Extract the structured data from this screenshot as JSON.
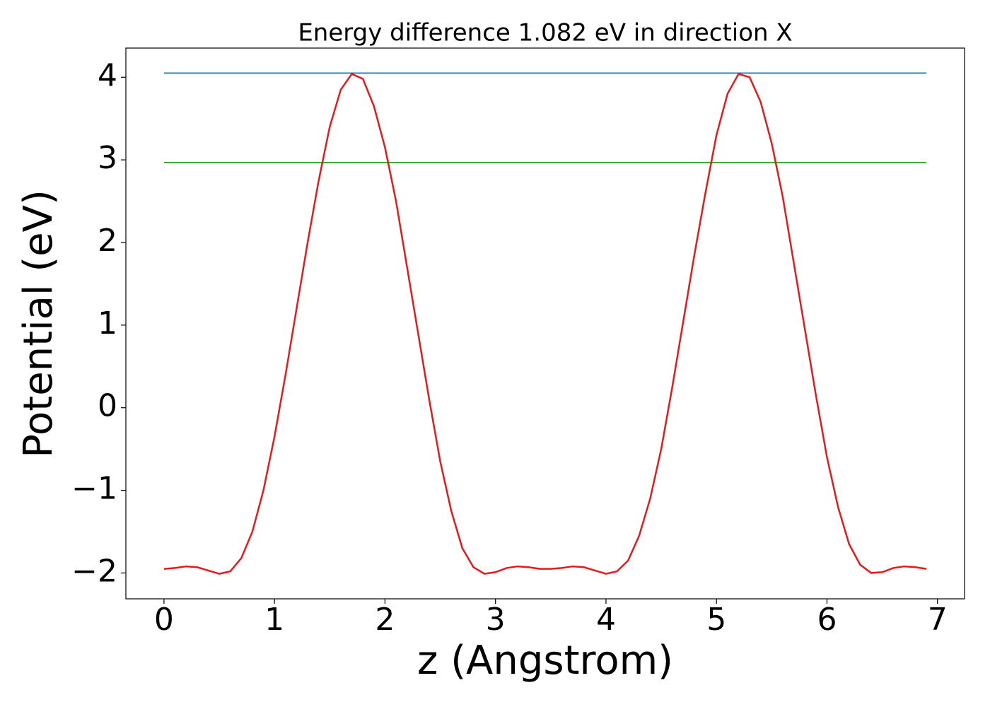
{
  "chart_data": {
    "type": "line",
    "title": "Energy difference 1.082 eV in direction X",
    "x_label": "z (Angstrom)",
    "y_label": "Potential (eV)",
    "xlim": [
      -0.345,
      7.245
    ],
    "ylim": [
      -2.313,
      4.353
    ],
    "xticks": [
      0,
      1,
      2,
      3,
      4,
      5,
      6,
      7
    ],
    "yticks": [
      {
        "value": -2,
        "label": "−2"
      },
      {
        "value": -1,
        "label": "−1"
      },
      0,
      1,
      2,
      3,
      4
    ],
    "series": [
      {
        "color": "#1f77b4",
        "x": [
          0,
          6.9
        ],
        "values": [
          4.05,
          4.05
        ]
      },
      {
        "color": "#2ca02c",
        "x": [
          0,
          6.9
        ],
        "values": [
          2.968,
          2.968
        ]
      },
      {
        "color": "#e41a1c",
        "x": [
          0,
          0.1,
          0.2,
          0.3,
          0.4,
          0.5,
          0.6,
          0.7,
          0.8,
          0.9,
          1.0,
          1.1,
          1.2,
          1.3,
          1.4,
          1.5,
          1.6,
          1.7,
          1.8,
          1.9,
          2.0,
          2.1,
          2.2,
          2.3,
          2.4,
          2.5,
          2.6,
          2.7,
          2.8,
          2.9,
          3.0,
          3.1,
          3.2,
          3.3,
          3.4,
          3.5,
          3.6,
          3.7,
          3.8,
          3.9,
          4.0,
          4.1,
          4.2,
          4.3,
          4.4,
          4.5,
          4.6,
          4.7,
          4.8,
          4.9,
          5.0,
          5.1,
          5.2,
          5.3,
          5.4,
          5.5,
          5.6,
          5.7,
          5.8,
          5.9,
          6.0,
          6.1,
          6.2,
          6.3,
          6.4,
          6.5,
          6.6,
          6.7,
          6.8,
          6.9
        ],
        "values": [
          -1.95,
          -1.94,
          -1.92,
          -1.93,
          -1.97,
          -2.01,
          -1.98,
          -1.82,
          -1.5,
          -1.0,
          -0.35,
          0.4,
          1.2,
          2.0,
          2.75,
          3.4,
          3.85,
          4.04,
          3.98,
          3.65,
          3.15,
          2.5,
          1.7,
          0.9,
          0.1,
          -0.65,
          -1.25,
          -1.7,
          -1.93,
          -2.01,
          -1.99,
          -1.94,
          -1.92,
          -1.93,
          -1.95,
          -1.95,
          -1.94,
          -1.92,
          -1.93,
          -1.97,
          -2.01,
          -1.98,
          -1.85,
          -1.55,
          -1.1,
          -0.5,
          0.25,
          1.05,
          1.85,
          2.6,
          3.3,
          3.8,
          4.04,
          4.0,
          3.7,
          3.2,
          2.55,
          1.75,
          0.95,
          0.15,
          -0.6,
          -1.2,
          -1.65,
          -1.9,
          -2.0,
          -1.99,
          -1.94,
          -1.92,
          -1.93,
          -1.95
        ]
      }
    ]
  }
}
